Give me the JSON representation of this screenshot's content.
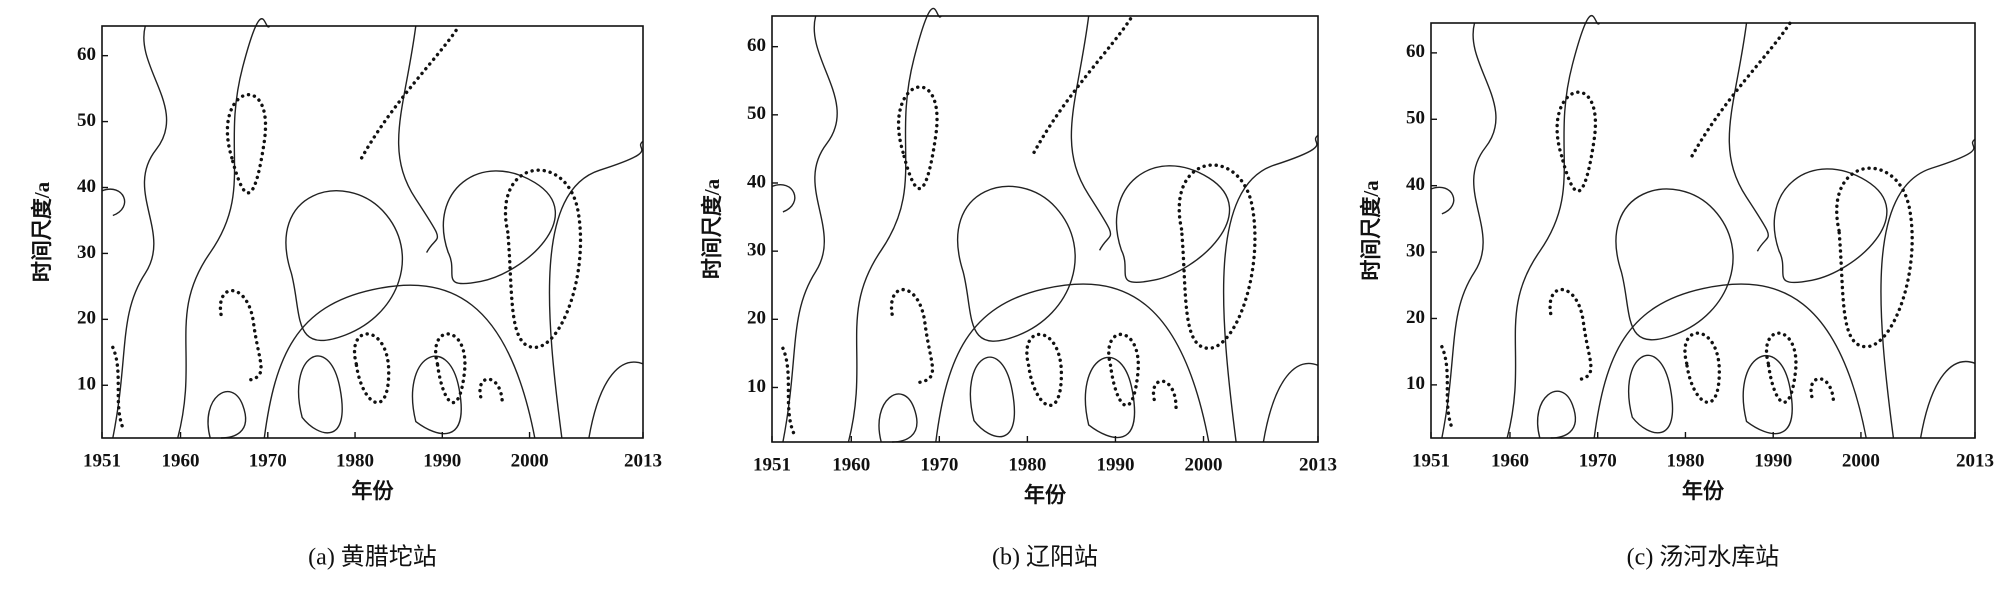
{
  "chart_data": [
    {
      "type": "contour",
      "xlabel": "年份",
      "ylabel": "时间尺度/a",
      "caption": "(a) 黄腊坨站",
      "xlim": [
        1951,
        2013
      ],
      "xticks": [
        1951,
        1960,
        1970,
        1980,
        1990,
        2000,
        2013
      ],
      "ylim": [
        2,
        64.5
      ],
      "yticks": [
        10,
        20,
        30,
        40,
        50,
        60
      ]
    },
    {
      "type": "contour",
      "xlabel": "年份",
      "ylabel": "时间尺度/a",
      "caption": "(b) 辽阳站",
      "xlim": [
        1951,
        2013
      ],
      "xticks": [
        1951,
        1960,
        1970,
        1980,
        1990,
        2000,
        2013
      ],
      "ylim": [
        2,
        64.5
      ],
      "yticks": [
        10,
        20,
        30,
        40,
        50,
        60
      ]
    },
    {
      "type": "contour",
      "xlabel": "年份",
      "ylabel": "时间尺度/a",
      "caption": "(c) 汤河水库站",
      "xlim": [
        1951,
        2013
      ],
      "xticks": [
        1951,
        1960,
        1970,
        1980,
        1990,
        2000,
        2013
      ],
      "ylim": [
        2,
        64.5
      ],
      "yticks": [
        10,
        20,
        30,
        40,
        50,
        60
      ]
    }
  ]
}
